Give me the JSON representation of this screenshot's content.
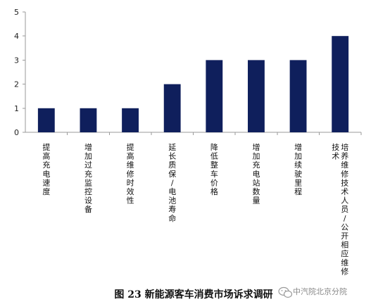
{
  "chart_data": {
    "type": "bar",
    "categories": [
      "提高充电速度",
      "增加过充监控设备",
      "提高维修时效性",
      "延长质保/电池寿命",
      "降低整车价格",
      "增加充电站数量",
      "增加续驶里程",
      "培养维修技术人员/公开相应维修技术"
    ],
    "category_lines": [
      [
        "提高充电速度"
      ],
      [
        "增加过充监控设备"
      ],
      [
        "提高维修时效性"
      ],
      [
        "延长质保/电池寿命"
      ],
      [
        "降低整车价格"
      ],
      [
        "增加充电站数量"
      ],
      [
        "增加续驶里程"
      ],
      [
        "培养维修技术人员/公开相应维修",
        "技术"
      ]
    ],
    "values": [
      1,
      1,
      1,
      2,
      3,
      3,
      3,
      4
    ],
    "ylim": [
      0,
      5
    ],
    "yticks": [
      "0",
      "1",
      "2",
      "3",
      "4",
      "5"
    ],
    "bar_color": "#0f1f5c",
    "grid": false,
    "title": "",
    "xlabel": "",
    "ylabel": ""
  },
  "caption": {
    "title": "图 23  新能源客车消费市场诉求调研"
  },
  "watermark": {
    "text": "中汽院北京分院",
    "icon": "wechat-logo-icon"
  }
}
